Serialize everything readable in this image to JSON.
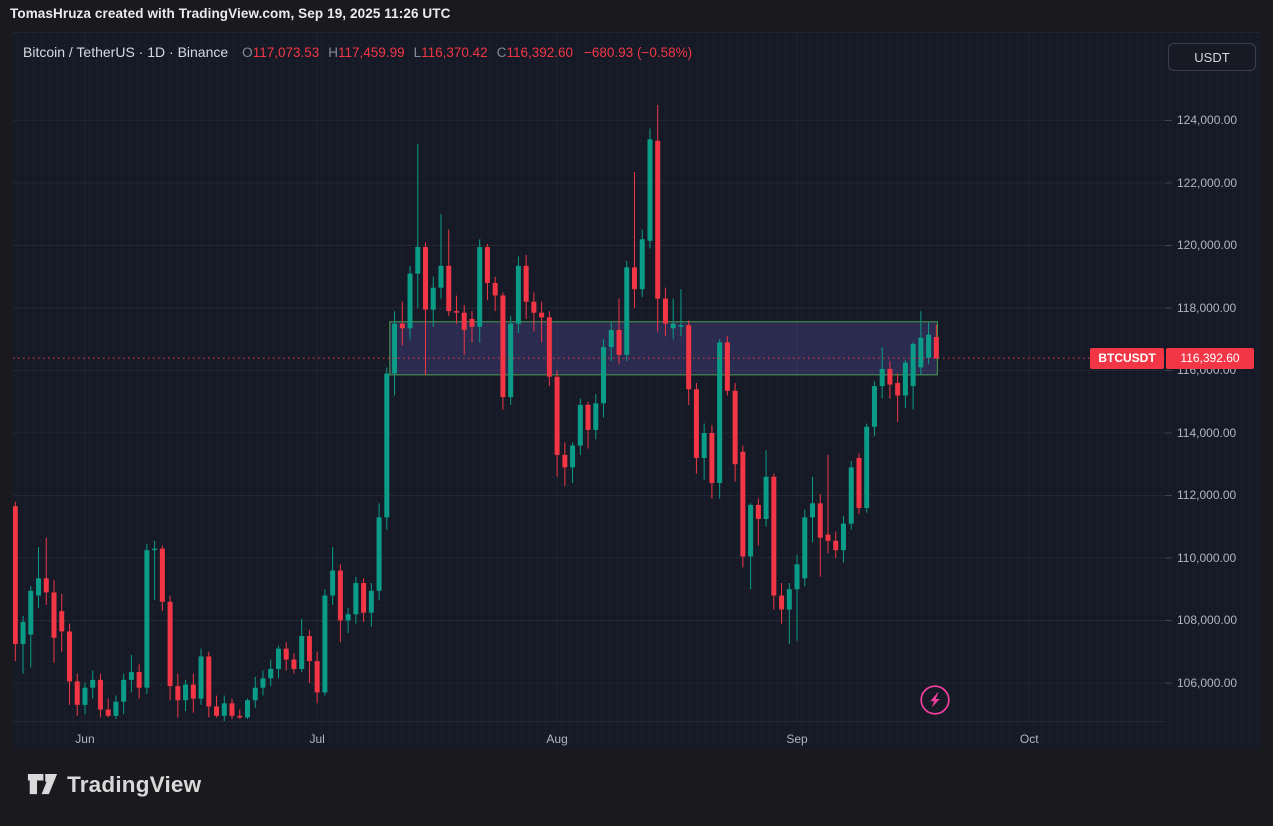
{
  "watermark": {
    "text": "TomasHruza created with TradingView.com, Sep 19, 2025 11:26 UTC"
  },
  "header": {
    "title": "Bitcoin / TetherUS · 1D · Binance",
    "ohlc": [
      {
        "label": "O",
        "value": "117,073.53"
      },
      {
        "label": "H",
        "value": "117,459.99"
      },
      {
        "label": "L",
        "value": "116,370.42"
      },
      {
        "label": "C",
        "value": "116,392.60"
      }
    ],
    "change": "−680.93 (−0.58%)",
    "currency_button": "USDT"
  },
  "price_line": {
    "tag": "BTCUSDT",
    "value": "116,392.60",
    "price": 116392.6
  },
  "axes": {
    "y_ticks": [
      {
        "label": "124,000.00",
        "price": 124000
      },
      {
        "label": "122,000.00",
        "price": 122000
      },
      {
        "label": "120,000.00",
        "price": 120000
      },
      {
        "label": "118,000.00",
        "price": 118000
      },
      {
        "label": "116,000.00",
        "price": 116000
      },
      {
        "label": "114,000.00",
        "price": 114000
      },
      {
        "label": "112,000.00",
        "price": 112000
      },
      {
        "label": "110,000.00",
        "price": 110000
      },
      {
        "label": "108,000.00",
        "price": 108000
      },
      {
        "label": "106,000.00",
        "price": 106000
      }
    ],
    "x_ticks": [
      {
        "label": "Jun",
        "index": 9
      },
      {
        "label": "Jul",
        "index": 39
      },
      {
        "label": "Aug",
        "index": 70
      },
      {
        "label": "Sep",
        "index": 101
      },
      {
        "label": "Oct",
        "index": 131
      }
    ]
  },
  "zone_box": {
    "start_index": 48,
    "end_index": 119,
    "top_price": 117560,
    "bottom_price": 115860,
    "fill": "rgba(118,98,214,0.24)",
    "border": "#4caf50"
  },
  "boost_button": {
    "icon": "lightning-bolt-icon",
    "color": "#f23fa0"
  },
  "footer": {
    "logo_text": "TradingView"
  },
  "colors": {
    "up": "#0b9c87",
    "down": "#f23645",
    "accent_red": "#f23645",
    "grid": "rgba(255,255,255,0.055)",
    "axis_text": "#b2b5be",
    "pane_bg": "#151a26",
    "outer_bg": "#1a1a1e"
  },
  "chart_data": {
    "type": "candlestick",
    "symbol": "BTCUSDT",
    "exchange": "Binance",
    "interval": "1D",
    "ylim": [
      104780,
      126780
    ],
    "legend_position": "top-left",
    "grid": true,
    "candle_order": [
      "date",
      "open",
      "high",
      "low",
      "close"
    ],
    "candles": [
      [
        "2025-05-23",
        111660,
        111800,
        106700,
        107250
      ],
      [
        "2025-05-24",
        107250,
        108150,
        106300,
        107950
      ],
      [
        "2025-05-25",
        107550,
        109100,
        106500,
        108950
      ],
      [
        "2025-05-26",
        108800,
        110350,
        108400,
        109350
      ],
      [
        "2025-05-27",
        109350,
        110650,
        108500,
        108900
      ],
      [
        "2025-05-28",
        108900,
        109300,
        106650,
        107450
      ],
      [
        "2025-05-29",
        108300,
        108850,
        107000,
        107650
      ],
      [
        "2025-05-30",
        107650,
        107900,
        105300,
        106050
      ],
      [
        "2025-05-31",
        106050,
        106300,
        104950,
        105300
      ],
      [
        "2025-06-01",
        105300,
        106000,
        105000,
        105850
      ],
      [
        "2025-06-02",
        105850,
        106400,
        105500,
        106100
      ],
      [
        "2025-06-03",
        106100,
        106300,
        104900,
        105150
      ],
      [
        "2025-06-04",
        105150,
        105500,
        104900,
        104950
      ],
      [
        "2025-06-05",
        104950,
        105600,
        104850,
        105400
      ],
      [
        "2025-06-06",
        105400,
        106300,
        105000,
        106100
      ],
      [
        "2025-06-07",
        106100,
        106900,
        105700,
        106350
      ],
      [
        "2025-06-08",
        106350,
        106600,
        105500,
        105850
      ],
      [
        "2025-06-09",
        105850,
        110450,
        105650,
        110250
      ],
      [
        "2025-06-10",
        110250,
        110550,
        108650,
        110300
      ],
      [
        "2025-06-11",
        110300,
        110400,
        108300,
        108600
      ],
      [
        "2025-06-12",
        108600,
        108800,
        105450,
        105900
      ],
      [
        "2025-06-13",
        105900,
        106300,
        104900,
        105450
      ],
      [
        "2025-06-14",
        105450,
        106100,
        105100,
        105950
      ],
      [
        "2025-06-15",
        105950,
        106300,
        105050,
        105500
      ],
      [
        "2025-06-16",
        105500,
        107100,
        105300,
        106850
      ],
      [
        "2025-06-17",
        106850,
        107000,
        104900,
        105250
      ],
      [
        "2025-06-18",
        105250,
        105600,
        104900,
        104950
      ],
      [
        "2025-06-19",
        104950,
        105600,
        104750,
        105350
      ],
      [
        "2025-06-20",
        105350,
        105500,
        104850,
        104950
      ],
      [
        "2025-06-21",
        104950,
        105150,
        104850,
        104900
      ],
      [
        "2025-06-22",
        104900,
        105500,
        104850,
        105450
      ],
      [
        "2025-06-23",
        105450,
        106200,
        105200,
        105850
      ],
      [
        "2025-06-24",
        105850,
        106400,
        105600,
        106150
      ],
      [
        "2025-06-25",
        106150,
        106750,
        105900,
        106450
      ],
      [
        "2025-06-26",
        106450,
        107200,
        106150,
        107100
      ],
      [
        "2025-06-27",
        107100,
        107300,
        106400,
        106750
      ],
      [
        "2025-06-28",
        106750,
        106950,
        106300,
        106450
      ],
      [
        "2025-06-29",
        106450,
        108050,
        106350,
        107500
      ],
      [
        "2025-06-30",
        107500,
        107700,
        106000,
        106700
      ],
      [
        "2025-07-01",
        106700,
        107000,
        105350,
        105700
      ],
      [
        "2025-07-02",
        105700,
        109000,
        105600,
        108800
      ],
      [
        "2025-07-03",
        108800,
        110350,
        108500,
        109600
      ],
      [
        "2025-07-04",
        109600,
        109800,
        107300,
        108000
      ],
      [
        "2025-07-05",
        108000,
        108400,
        107600,
        108200
      ],
      [
        "2025-07-06",
        108200,
        109400,
        107900,
        109200
      ],
      [
        "2025-07-07",
        109200,
        109350,
        107950,
        108250
      ],
      [
        "2025-07-08",
        108250,
        109200,
        107800,
        108950
      ],
      [
        "2025-07-09",
        108950,
        111750,
        108650,
        111300
      ],
      [
        "2025-07-10",
        111300,
        116100,
        110900,
        115900
      ],
      [
        "2025-07-11",
        115900,
        117900,
        115200,
        117500
      ],
      [
        "2025-07-12",
        117500,
        118200,
        116800,
        117350
      ],
      [
        "2025-07-13",
        117350,
        119350,
        117000,
        119100
      ],
      [
        "2025-07-14",
        119100,
        123250,
        118000,
        119950
      ],
      [
        "2025-07-15",
        119950,
        120100,
        115850,
        117950
      ],
      [
        "2025-07-16",
        117950,
        119000,
        117400,
        118650
      ],
      [
        "2025-07-17",
        118650,
        121000,
        118300,
        119350
      ],
      [
        "2025-07-18",
        119350,
        120500,
        117750,
        117900
      ],
      [
        "2025-07-19",
        117900,
        118400,
        117500,
        117850
      ],
      [
        "2025-07-20",
        117850,
        118100,
        116500,
        117300
      ],
      [
        "2025-07-21",
        117650,
        117900,
        116900,
        117400
      ],
      [
        "2025-07-22",
        117400,
        120200,
        116900,
        119950
      ],
      [
        "2025-07-23",
        119950,
        120050,
        118250,
        118800
      ],
      [
        "2025-07-24",
        118800,
        119000,
        117900,
        118400
      ],
      [
        "2025-07-25",
        118400,
        118500,
        114750,
        115150
      ],
      [
        "2025-07-26",
        115150,
        117750,
        114900,
        117500
      ],
      [
        "2025-07-27",
        117500,
        119650,
        117200,
        119350
      ],
      [
        "2025-07-28",
        119350,
        119700,
        117650,
        118200
      ],
      [
        "2025-07-29",
        118200,
        118500,
        117250,
        117850
      ],
      [
        "2025-07-30",
        117850,
        118200,
        116900,
        117700
      ],
      [
        "2025-07-31",
        117700,
        117900,
        115500,
        115800
      ],
      [
        "2025-08-01",
        115800,
        116000,
        112600,
        113300
      ],
      [
        "2025-08-02",
        113300,
        113700,
        112300,
        112900
      ],
      [
        "2025-08-03",
        112900,
        113700,
        112400,
        113600
      ],
      [
        "2025-08-04",
        113600,
        115100,
        113300,
        114900
      ],
      [
        "2025-08-05",
        114900,
        115000,
        113500,
        114100
      ],
      [
        "2025-08-06",
        114100,
        115250,
        113800,
        114950
      ],
      [
        "2025-08-07",
        114950,
        117000,
        114500,
        116750
      ],
      [
        "2025-08-08",
        116750,
        117550,
        116300,
        117300
      ],
      [
        "2025-08-09",
        117300,
        118300,
        116200,
        116500
      ],
      [
        "2025-08-10",
        116500,
        119500,
        116300,
        119300
      ],
      [
        "2025-08-11",
        119300,
        122350,
        118000,
        118600
      ],
      [
        "2025-08-12",
        118600,
        120500,
        118350,
        120200
      ],
      [
        "2025-08-13",
        120150,
        123750,
        119900,
        123400
      ],
      [
        "2025-08-14",
        123350,
        124500,
        117250,
        118300
      ],
      [
        "2025-08-15",
        118300,
        118650,
        117100,
        117500
      ],
      [
        "2025-08-16",
        117350,
        118300,
        117000,
        117500
      ],
      [
        "2025-08-17",
        117400,
        118600,
        117100,
        117450
      ],
      [
        "2025-08-18",
        117450,
        117600,
        114900,
        115400
      ],
      [
        "2025-08-19",
        115400,
        115600,
        112700,
        113200
      ],
      [
        "2025-08-20",
        113200,
        114300,
        112500,
        114000
      ],
      [
        "2025-08-21",
        114000,
        114250,
        111900,
        112400
      ],
      [
        "2025-08-22",
        112400,
        117000,
        111900,
        116900
      ],
      [
        "2025-08-23",
        116900,
        117100,
        115200,
        115350
      ],
      [
        "2025-08-24",
        115350,
        115600,
        112450,
        113000
      ],
      [
        "2025-08-25",
        113400,
        113600,
        109700,
        110050
      ],
      [
        "2025-08-26",
        110050,
        111750,
        109000,
        111700
      ],
      [
        "2025-08-27",
        111700,
        111900,
        110400,
        111250
      ],
      [
        "2025-08-28",
        111250,
        113450,
        111000,
        112600
      ],
      [
        "2025-08-29",
        112600,
        112700,
        108350,
        108800
      ],
      [
        "2025-08-30",
        108800,
        109200,
        107900,
        108350
      ],
      [
        "2025-08-31",
        108350,
        109200,
        107250,
        109000
      ],
      [
        "2025-09-01",
        109000,
        110100,
        107350,
        109800
      ],
      [
        "2025-09-02",
        109350,
        111550,
        109100,
        111300
      ],
      [
        "2025-09-03",
        111300,
        112600,
        110500,
        111750
      ],
      [
        "2025-09-04",
        111750,
        112050,
        109400,
        110650
      ],
      [
        "2025-09-05",
        110750,
        113300,
        110150,
        110550
      ],
      [
        "2025-09-06",
        110550,
        110850,
        110000,
        110250
      ],
      [
        "2025-09-07",
        110250,
        111350,
        109850,
        111100
      ],
      [
        "2025-09-08",
        111100,
        113100,
        110900,
        112900
      ],
      [
        "2025-09-09",
        113200,
        113350,
        111400,
        111600
      ],
      [
        "2025-09-10",
        111600,
        114300,
        111450,
        114200
      ],
      [
        "2025-09-11",
        114200,
        115650,
        113900,
        115500
      ],
      [
        "2025-09-12",
        115500,
        116750,
        115100,
        116050
      ],
      [
        "2025-09-13",
        116050,
        116300,
        115100,
        115550
      ],
      [
        "2025-09-14",
        115600,
        115900,
        114350,
        115200
      ],
      [
        "2025-09-15",
        115200,
        116350,
        114800,
        116250
      ],
      [
        "2025-09-16",
        115500,
        116900,
        114750,
        116850
      ],
      [
        "2025-09-17",
        116100,
        117900,
        115850,
        117050
      ],
      [
        "2025-09-18",
        116400,
        117550,
        116200,
        117150
      ],
      [
        "2025-09-19",
        117073.53,
        117459.99,
        116370.42,
        116392.6
      ]
    ]
  }
}
